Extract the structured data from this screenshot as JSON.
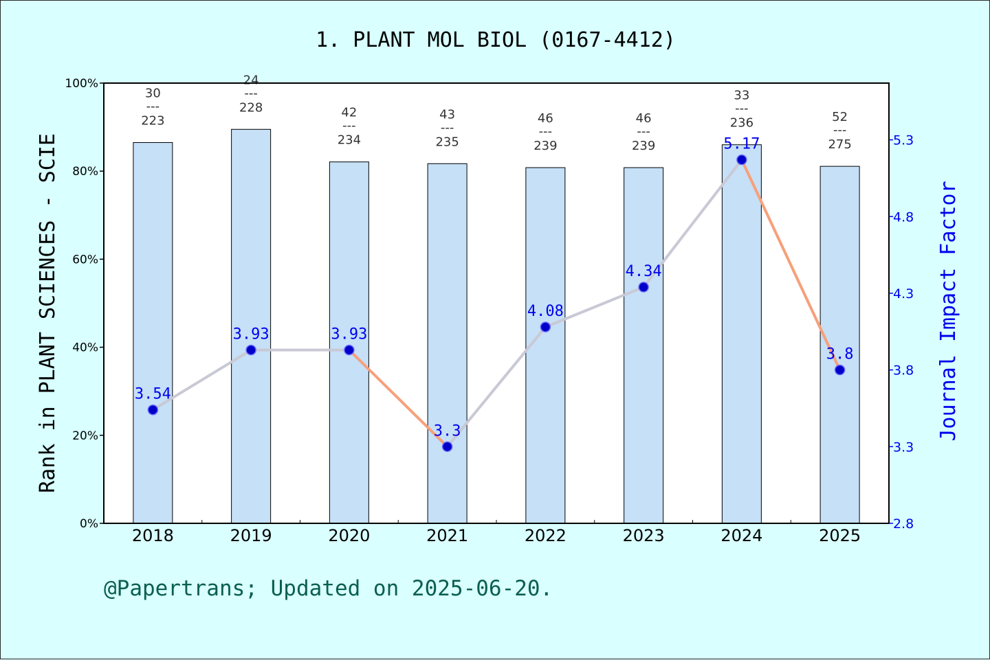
{
  "title": "1. PLANT MOL BIOL (0167-4412)",
  "footer": "@Papertrans; Updated on 2025-06-20.",
  "colors": {
    "background": "#d9ffff",
    "bar_fill": "#c5e0f7",
    "line_up": "#c9c9d6",
    "line_down": "#f7a07a",
    "point_fill": "#0000c8",
    "if_label": "#0000ee",
    "footer": "#0b5f4f"
  },
  "chart_data": {
    "type": "bar",
    "categories": [
      "2018",
      "2019",
      "2020",
      "2021",
      "2022",
      "2023",
      "2024",
      "2025"
    ],
    "ylabel": "Rank in PLANT SCIENCES - SCIE",
    "y2label": "Journal Impact Factor",
    "ylim": [
      0,
      100
    ],
    "y2lim": [
      2.8,
      5.67
    ],
    "y_ticks": [
      "0%",
      "20%",
      "40%",
      "60%",
      "80%",
      "100%"
    ],
    "y2_ticks": [
      "2.8",
      "3.3",
      "3.8",
      "4.3",
      "4.8",
      "5.3"
    ],
    "series": [
      {
        "name": "Rank in PLANT SCIENCES - SCIE",
        "type": "bar",
        "values": [
          86.5,
          89.5,
          82.1,
          81.7,
          80.8,
          80.8,
          86.0,
          81.1
        ],
        "rank": [
          "30",
          "24",
          "42",
          "43",
          "46",
          "46",
          "33",
          "52"
        ],
        "total": [
          "223",
          "228",
          "234",
          "235",
          "239",
          "239",
          "236",
          "275"
        ],
        "separator": "---"
      },
      {
        "name": "Journal Impact Factor",
        "type": "line",
        "axis": "right",
        "values": [
          3.54,
          3.93,
          3.93,
          3.3,
          4.08,
          4.34,
          5.17,
          3.8
        ],
        "labels": [
          "3.54",
          "3.93",
          "3.93",
          "3.3",
          "4.08",
          "4.34",
          "5.17",
          "3.8"
        ]
      }
    ],
    "grid": false,
    "legend": "none"
  }
}
